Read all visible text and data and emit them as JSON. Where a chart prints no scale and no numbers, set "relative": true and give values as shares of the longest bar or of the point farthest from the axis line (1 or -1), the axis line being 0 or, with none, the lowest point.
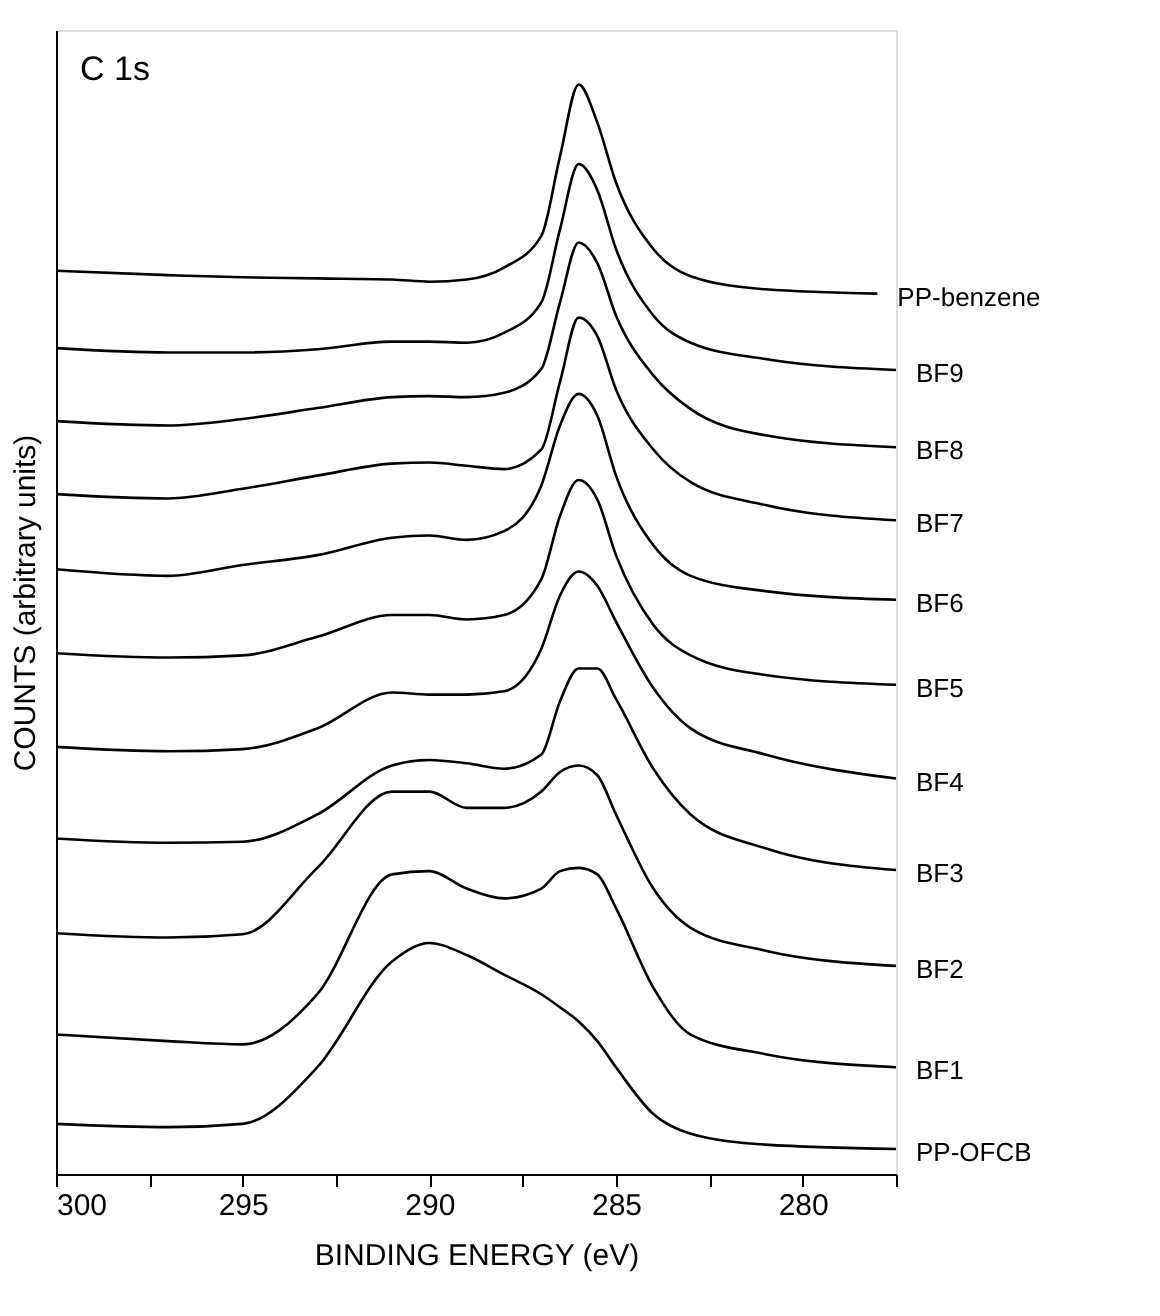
{
  "chart_data": {
    "type": "line",
    "relative": true,
    "xlabel": "BINDING ENERGY (eV)",
    "ylabel": "COUNTS (arbitrary units)",
    "annotations": [
      "C 1s"
    ],
    "xlim": [
      300,
      277.5
    ],
    "xticks": [
      300,
      {
        "value": 297.5,
        "label": null
      },
      295,
      {
        "value": 292.5,
        "label": null
      },
      290,
      {
        "value": 287.5,
        "label": null
      },
      285,
      {
        "value": 282.5,
        "label": null
      },
      280,
      {
        "value": 277.5,
        "label": null
      }
    ],
    "grid": false,
    "legend": false,
    "marker": "none",
    "line_style": "solid",
    "x": [
      300,
      297,
      295,
      293,
      291,
      290,
      289,
      288,
      287,
      286.5,
      286,
      285.5,
      285,
      284,
      283,
      281,
      277.5
    ],
    "series": [
      {
        "name": "PP-benzene",
        "color": "#000000",
        "x": [
          300,
          297,
          295,
          293,
          291,
          290,
          289,
          288,
          287,
          286.5,
          286,
          285.5,
          285,
          284,
          283,
          281,
          278
        ],
        "values": [
          0.829,
          0.825,
          0.823,
          0.822,
          0.821,
          0.819,
          0.821,
          0.832,
          0.861,
          0.934,
          1.0,
          0.965,
          0.91,
          0.849,
          0.824,
          0.812,
          0.808
        ]
      },
      {
        "name": "BF9",
        "color": "#000000",
        "values": [
          0.758,
          0.754,
          0.754,
          0.757,
          0.764,
          0.764,
          0.763,
          0.772,
          0.8,
          0.867,
          0.927,
          0.903,
          0.849,
          0.788,
          0.763,
          0.748,
          0.738
        ]
      },
      {
        "name": "BF8",
        "color": "#000000",
        "values": [
          0.691,
          0.687,
          0.693,
          0.703,
          0.713,
          0.714,
          0.713,
          0.717,
          0.739,
          0.8,
          0.855,
          0.836,
          0.788,
          0.733,
          0.702,
          0.678,
          0.667
        ]
      },
      {
        "name": "BF7",
        "color": "#000000",
        "values": [
          0.624,
          0.62,
          0.629,
          0.641,
          0.652,
          0.653,
          0.65,
          0.647,
          0.665,
          0.727,
          0.786,
          0.769,
          0.72,
          0.665,
          0.635,
          0.614,
          0.6
        ]
      },
      {
        "name": "BF6",
        "color": "#000000",
        "values": [
          0.555,
          0.549,
          0.559,
          0.568,
          0.584,
          0.586,
          0.582,
          0.59,
          0.632,
          0.687,
          0.716,
          0.696,
          0.641,
          0.577,
          0.549,
          0.535,
          0.527
        ]
      },
      {
        "name": "BF5",
        "color": "#000000",
        "values": [
          0.478,
          0.474,
          0.476,
          0.493,
          0.513,
          0.513,
          0.509,
          0.513,
          0.546,
          0.604,
          0.637,
          0.619,
          0.568,
          0.504,
          0.476,
          0.458,
          0.449
        ]
      },
      {
        "name": "BF4",
        "color": "#000000",
        "values": [
          0.392,
          0.388,
          0.39,
          0.409,
          0.442,
          0.44,
          0.44,
          0.443,
          0.482,
          0.531,
          0.553,
          0.54,
          0.507,
          0.446,
          0.409,
          0.385,
          0.363
        ]
      },
      {
        "name": "BF3",
        "color": "#000000",
        "values": [
          0.308,
          0.304,
          0.305,
          0.33,
          0.375,
          0.38,
          0.377,
          0.372,
          0.385,
          0.434,
          0.464,
          0.464,
          0.436,
          0.372,
          0.33,
          0.299,
          0.279
        ]
      },
      {
        "name": "BF2",
        "color": "#000000",
        "values": [
          0.221,
          0.217,
          0.22,
          0.281,
          0.351,
          0.351,
          0.336,
          0.336,
          0.351,
          0.369,
          0.375,
          0.366,
          0.33,
          0.262,
          0.226,
          0.205,
          0.191
        ]
      },
      {
        "name": "BF1",
        "color": "#000000",
        "values": [
          0.128,
          0.122,
          0.119,
          0.165,
          0.275,
          0.278,
          0.262,
          0.253,
          0.262,
          0.278,
          0.281,
          0.275,
          0.244,
          0.171,
          0.128,
          0.11,
          0.098
        ]
      },
      {
        "name": "PP-OFCB",
        "color": "#000000",
        "values": [
          0.046,
          0.043,
          0.046,
          0.098,
          0.195,
          0.212,
          0.201,
          0.183,
          0.165,
          0.153,
          0.14,
          0.122,
          0.098,
          0.055,
          0.037,
          0.027,
          0.023
        ]
      }
    ]
  }
}
